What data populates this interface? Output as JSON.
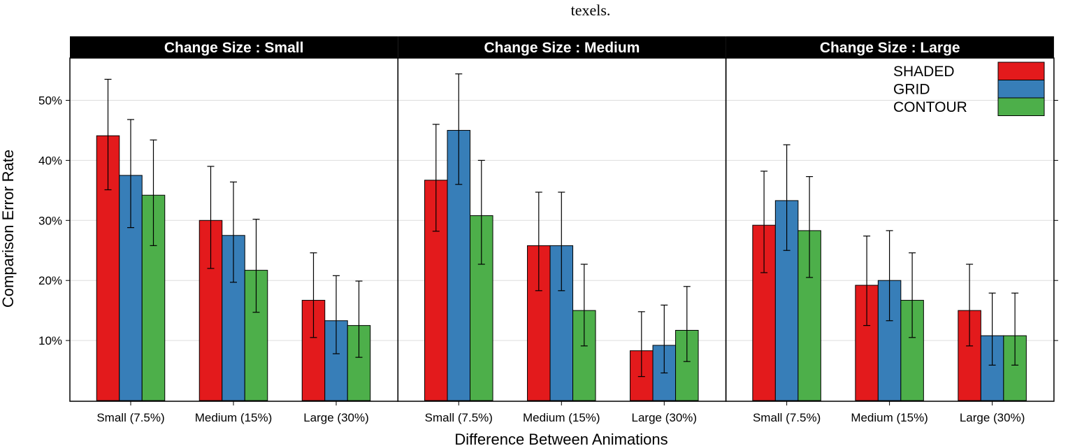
{
  "caption_fragment": "texels.",
  "colors": {
    "SHADED": "#e31a1c",
    "GRID": "#377eb8",
    "CONTOUR": "#4daf4a",
    "strip": "#000000",
    "grid_line": "#dddddd"
  },
  "chart_data": {
    "type": "bar",
    "xlabel": "Difference Between Animations",
    "ylabel": "Comparison Error Rate",
    "ylim": [
      0.0,
      0.575
    ],
    "yticks": [
      0.1,
      0.2,
      0.3,
      0.4,
      0.5
    ],
    "ytick_labels": [
      "10%",
      "20%",
      "30%",
      "40%",
      "50%"
    ],
    "grid": true,
    "legend_position": "top-right",
    "categories": [
      "Small (7.5%)",
      "Medium (15%)",
      "Large (30%)"
    ],
    "series_names": [
      "SHADED",
      "GRID",
      "CONTOUR"
    ],
    "panels": [
      {
        "title": "Change Size : Small",
        "series": [
          {
            "name": "SHADED",
            "values": [
              0.441,
              0.3,
              0.167
            ],
            "lower": [
              0.351,
              0.22,
              0.105
            ],
            "upper": [
              0.535,
              0.39,
              0.246
            ]
          },
          {
            "name": "GRID",
            "values": [
              0.375,
              0.275,
              0.133
            ],
            "lower": [
              0.288,
              0.197,
              0.078
            ],
            "upper": [
              0.468,
              0.364,
              0.208
            ]
          },
          {
            "name": "CONTOUR",
            "values": [
              0.342,
              0.217,
              0.125
            ],
            "lower": [
              0.258,
              0.147,
              0.072
            ],
            "upper": [
              0.434,
              0.302,
              0.199
            ]
          }
        ]
      },
      {
        "title": "Change Size : Medium",
        "series": [
          {
            "name": "SHADED",
            "values": [
              0.367,
              0.258,
              0.083
            ],
            "lower": [
              0.282,
              0.183,
              0.04
            ],
            "upper": [
              0.46,
              0.347,
              0.148
            ]
          },
          {
            "name": "GRID",
            "values": [
              0.45,
              0.258,
              0.092
            ],
            "lower": [
              0.36,
              0.183,
              0.046
            ],
            "upper": [
              0.544,
              0.347,
              0.159
            ]
          },
          {
            "name": "CONTOUR",
            "values": [
              0.308,
              0.15,
              0.117
            ],
            "lower": [
              0.227,
              0.091,
              0.065
            ],
            "upper": [
              0.4,
              0.227,
              0.19
            ]
          }
        ]
      },
      {
        "title": "Change Size : Large",
        "series": [
          {
            "name": "SHADED",
            "values": [
              0.292,
              0.192,
              0.15
            ],
            "lower": [
              0.213,
              0.125,
              0.091
            ],
            "upper": [
              0.382,
              0.274,
              0.227
            ]
          },
          {
            "name": "GRID",
            "values": [
              0.333,
              0.2,
              0.108
            ],
            "lower": [
              0.25,
              0.133,
              0.059
            ],
            "upper": [
              0.426,
              0.283,
              0.179
            ]
          },
          {
            "name": "CONTOUR",
            "values": [
              0.283,
              0.167,
              0.108
            ],
            "lower": [
              0.205,
              0.105,
              0.059
            ],
            "upper": [
              0.373,
              0.246,
              0.179
            ]
          }
        ]
      }
    ]
  }
}
